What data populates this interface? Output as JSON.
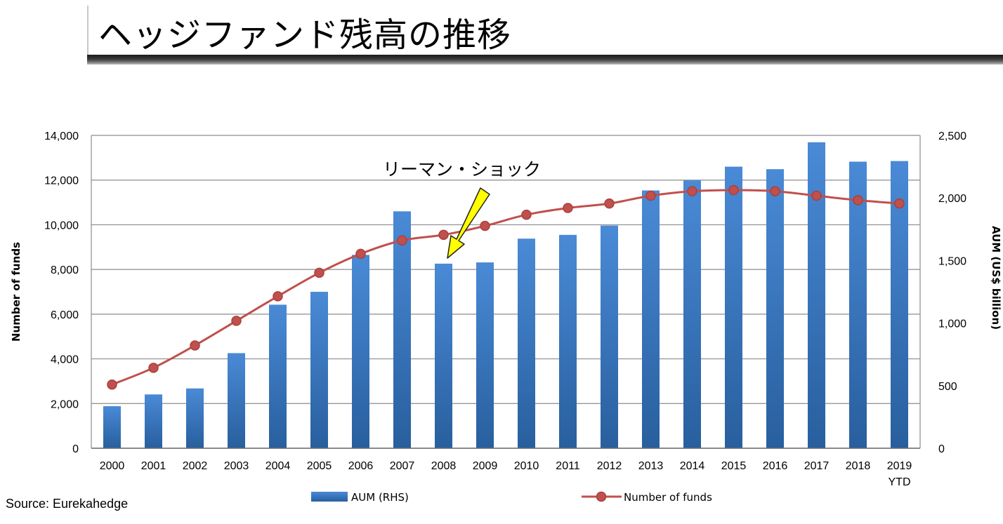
{
  "page": {
    "title": "ヘッジファンド残高の推移"
  },
  "source": "Source: Eurekahedge",
  "chart_data": {
    "type": "bar+line",
    "categories": [
      "2000",
      "2001",
      "2002",
      "2003",
      "2004",
      "2005",
      "2006",
      "2007",
      "2008",
      "2009",
      "2010",
      "2011",
      "2012",
      "2013",
      "2014",
      "2015",
      "2016",
      "2017",
      "2018",
      "2019"
    ],
    "category_sublabels": {
      "2019": "YTD"
    },
    "series": [
      {
        "name": "AUM (RHS)",
        "type": "bar",
        "axis": "right",
        "color": "#3a78c2",
        "values": [
          336,
          430,
          478,
          760,
          1147,
          1250,
          1545,
          1893,
          1475,
          1485,
          1675,
          1705,
          1780,
          2060,
          2140,
          2250,
          2230,
          2445,
          2290,
          2295
        ]
      },
      {
        "name": "Number of funds",
        "type": "line",
        "axis": "left",
        "color": "#c0504d",
        "values": [
          2850,
          3600,
          4600,
          5700,
          6800,
          7850,
          8700,
          9300,
          9550,
          9950,
          10450,
          10750,
          10950,
          11300,
          11500,
          11550,
          11500,
          11300,
          11100,
          10950
        ]
      }
    ],
    "y_left": {
      "label": "Number of funds",
      "min": 0,
      "max": 14000,
      "step": 2000,
      "ticks": [
        "0",
        "2,000",
        "4,000",
        "6,000",
        "8,000",
        "10,000",
        "12,000",
        "14,000"
      ]
    },
    "y_right": {
      "label": "AUM (US$ billion)",
      "min": 0,
      "max": 2500,
      "step": 500,
      "ticks": [
        "0",
        "500",
        "1,000",
        "1,500",
        "2,000",
        "2,500"
      ]
    },
    "grid": true,
    "legend": {
      "placement": "bottom",
      "entries": [
        "AUM (RHS)",
        "Number of funds"
      ]
    },
    "annotation": {
      "text": "リーマン・ショック",
      "target_category": "2008",
      "arrow_color": "#ffff00"
    }
  }
}
